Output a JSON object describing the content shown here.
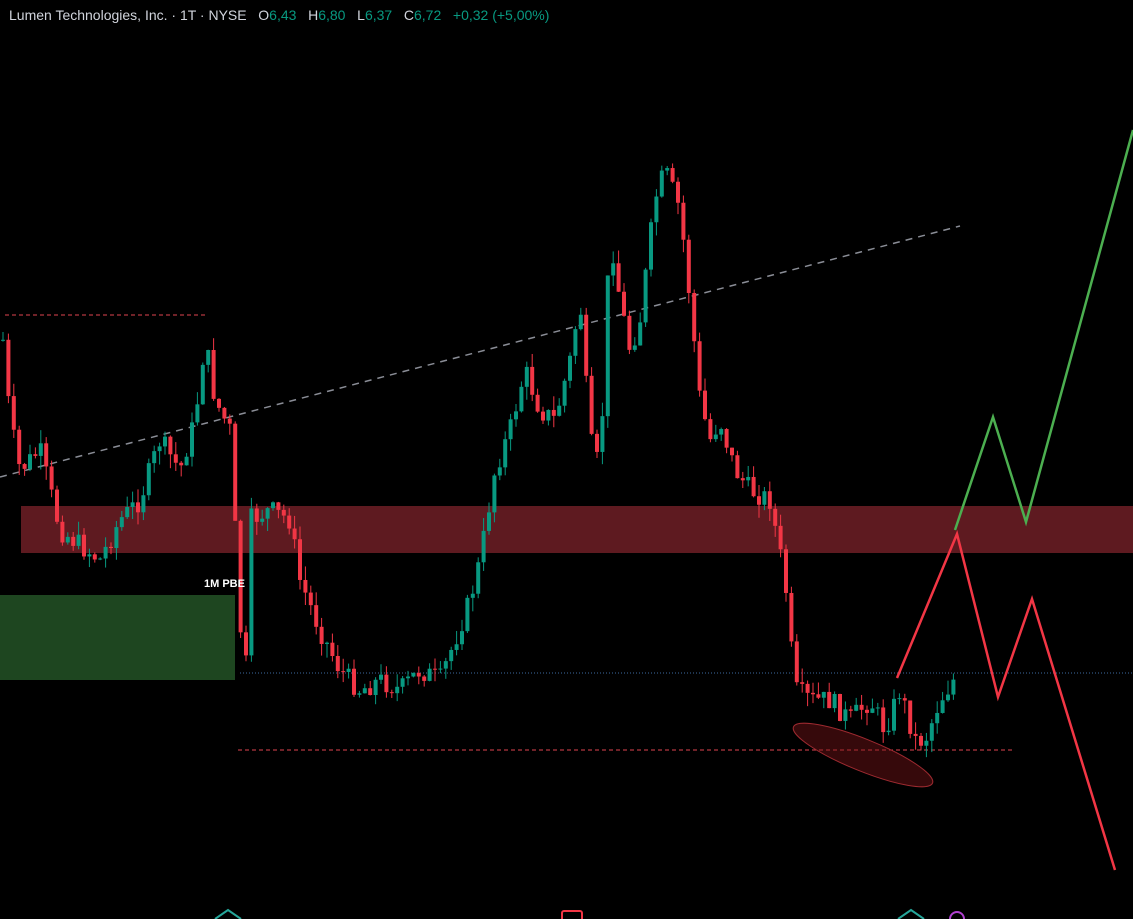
{
  "header": {
    "symbol": "Lumen Technologies, Inc. · 1T · NYSE",
    "open_label": "O",
    "open": "6,43",
    "high_label": "H",
    "high": "6,80",
    "low_label": "L",
    "low": "6,37",
    "close_label": "C",
    "close": "6,72",
    "change": "+0,32 (+5,00%)"
  },
  "annotations": {
    "zone_label": "1M PBE"
  }
}
